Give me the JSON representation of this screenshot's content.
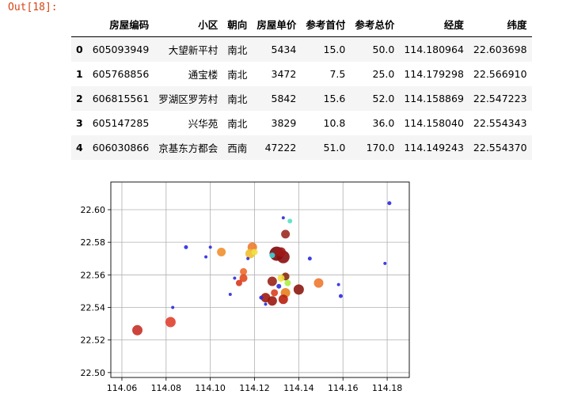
{
  "cell": {
    "out_prompt": "Out[18]:"
  },
  "table": {
    "columns": [
      "",
      "房屋编码",
      "小区",
      "朝向",
      "房屋单价",
      "参考首付",
      "参考总价",
      "经度",
      "纬度"
    ],
    "rows": [
      [
        "0",
        "605093949",
        "大望新平村",
        "南北",
        "5434",
        "15.0",
        "50.0",
        "114.180964",
        "22.603698"
      ],
      [
        "1",
        "605768856",
        "通宝楼",
        "南北",
        "3472",
        "7.5",
        "25.0",
        "114.179298",
        "22.566910"
      ],
      [
        "2",
        "606815561",
        "罗湖区罗芳村",
        "南北",
        "5842",
        "15.6",
        "52.0",
        "114.158869",
        "22.547223"
      ],
      [
        "3",
        "605147285",
        "兴华苑",
        "南北",
        "3829",
        "10.8",
        "36.0",
        "114.158040",
        "22.554343"
      ],
      [
        "4",
        "606030866",
        "京基东方都会",
        "西南",
        "47222",
        "51.0",
        "170.0",
        "114.149243",
        "22.554370"
      ]
    ]
  },
  "chart_data": {
    "type": "scatter",
    "title": "",
    "xlabel": "",
    "ylabel": "",
    "xlim": [
      114.055,
      114.19
    ],
    "ylim": [
      22.497,
      22.617
    ],
    "xticks": [
      114.06,
      114.08,
      114.1,
      114.12,
      114.14,
      114.16,
      114.18
    ],
    "yticks": [
      22.5,
      22.52,
      22.54,
      22.56,
      22.58,
      22.6
    ],
    "grid": true,
    "points": [
      {
        "x": 114.181,
        "y": 22.604,
        "r": 2.5,
        "color": "#2a2adf"
      },
      {
        "x": 114.179,
        "y": 22.567,
        "r": 2,
        "color": "#2a2adf"
      },
      {
        "x": 114.159,
        "y": 22.547,
        "r": 2.5,
        "color": "#2a2adf"
      },
      {
        "x": 114.158,
        "y": 22.554,
        "r": 2,
        "color": "#2a2adf"
      },
      {
        "x": 114.149,
        "y": 22.555,
        "r": 6,
        "color": "#f07830"
      },
      {
        "x": 114.145,
        "y": 22.57,
        "r": 2.5,
        "color": "#2a2adf"
      },
      {
        "x": 114.14,
        "y": 22.551,
        "r": 6.5,
        "color": "#8b1a12"
      },
      {
        "x": 114.136,
        "y": 22.593,
        "r": 3,
        "color": "#55e0c4"
      },
      {
        "x": 114.134,
        "y": 22.585,
        "r": 5.5,
        "color": "#9a2a22"
      },
      {
        "x": 114.133,
        "y": 22.595,
        "r": 2,
        "color": "#2a2adf"
      },
      {
        "x": 114.13,
        "y": 22.573,
        "r": 9,
        "color": "#7a0a0a"
      },
      {
        "x": 114.133,
        "y": 22.571,
        "r": 8,
        "color": "#8a0e0e"
      },
      {
        "x": 114.132,
        "y": 22.574,
        "r": 6,
        "color": "#a01818"
      },
      {
        "x": 114.128,
        "y": 22.572,
        "r": 3.5,
        "color": "#40d0d8"
      },
      {
        "x": 114.134,
        "y": 22.559,
        "r": 5,
        "color": "#8a2a10"
      },
      {
        "x": 114.135,
        "y": 22.555,
        "r": 4,
        "color": "#aaf040"
      },
      {
        "x": 114.132,
        "y": 22.558,
        "r": 4.5,
        "color": "#f0e040"
      },
      {
        "x": 114.131,
        "y": 22.553,
        "r": 3,
        "color": "#2a2adf"
      },
      {
        "x": 114.128,
        "y": 22.556,
        "r": 6,
        "color": "#9a2418"
      },
      {
        "x": 114.134,
        "y": 22.549,
        "r": 6,
        "color": "#e88020"
      },
      {
        "x": 114.133,
        "y": 22.545,
        "r": 6,
        "color": "#b82010"
      },
      {
        "x": 114.129,
        "y": 22.549,
        "r": 4.5,
        "color": "#d84020"
      },
      {
        "x": 114.128,
        "y": 22.544,
        "r": 6,
        "color": "#9a1a10"
      },
      {
        "x": 114.125,
        "y": 22.546,
        "r": 6,
        "color": "#a01a10"
      },
      {
        "x": 114.125,
        "y": 22.542,
        "r": 2,
        "color": "#2a2adf"
      },
      {
        "x": 114.123,
        "y": 22.546,
        "r": 2.5,
        "color": "#2a2adf"
      },
      {
        "x": 114.119,
        "y": 22.577,
        "r": 6,
        "color": "#f07a30"
      },
      {
        "x": 114.118,
        "y": 22.573,
        "r": 6,
        "color": "#f0c030"
      },
      {
        "x": 114.12,
        "y": 22.574,
        "r": 4,
        "color": "#f0e040"
      },
      {
        "x": 114.117,
        "y": 22.57,
        "r": 2,
        "color": "#2a2adf"
      },
      {
        "x": 114.115,
        "y": 22.562,
        "r": 4.5,
        "color": "#f06a30"
      },
      {
        "x": 114.115,
        "y": 22.558,
        "r": 5,
        "color": "#e04a20"
      },
      {
        "x": 114.113,
        "y": 22.555,
        "r": 4,
        "color": "#d83a20"
      },
      {
        "x": 114.111,
        "y": 22.558,
        "r": 2,
        "color": "#2a2adf"
      },
      {
        "x": 114.109,
        "y": 22.548,
        "r": 2,
        "color": "#2a2adf"
      },
      {
        "x": 114.105,
        "y": 22.574,
        "r": 5.5,
        "color": "#f09030"
      },
      {
        "x": 114.1,
        "y": 22.577,
        "r": 2,
        "color": "#2a2adf"
      },
      {
        "x": 114.098,
        "y": 22.571,
        "r": 2,
        "color": "#2a2adf"
      },
      {
        "x": 114.089,
        "y": 22.577,
        "r": 2.5,
        "color": "#2a2adf"
      },
      {
        "x": 114.083,
        "y": 22.54,
        "r": 2,
        "color": "#2a2adf"
      },
      {
        "x": 114.082,
        "y": 22.531,
        "r": 6.5,
        "color": "#e04030"
      },
      {
        "x": 114.067,
        "y": 22.526,
        "r": 6.5,
        "color": "#c83028"
      }
    ]
  }
}
